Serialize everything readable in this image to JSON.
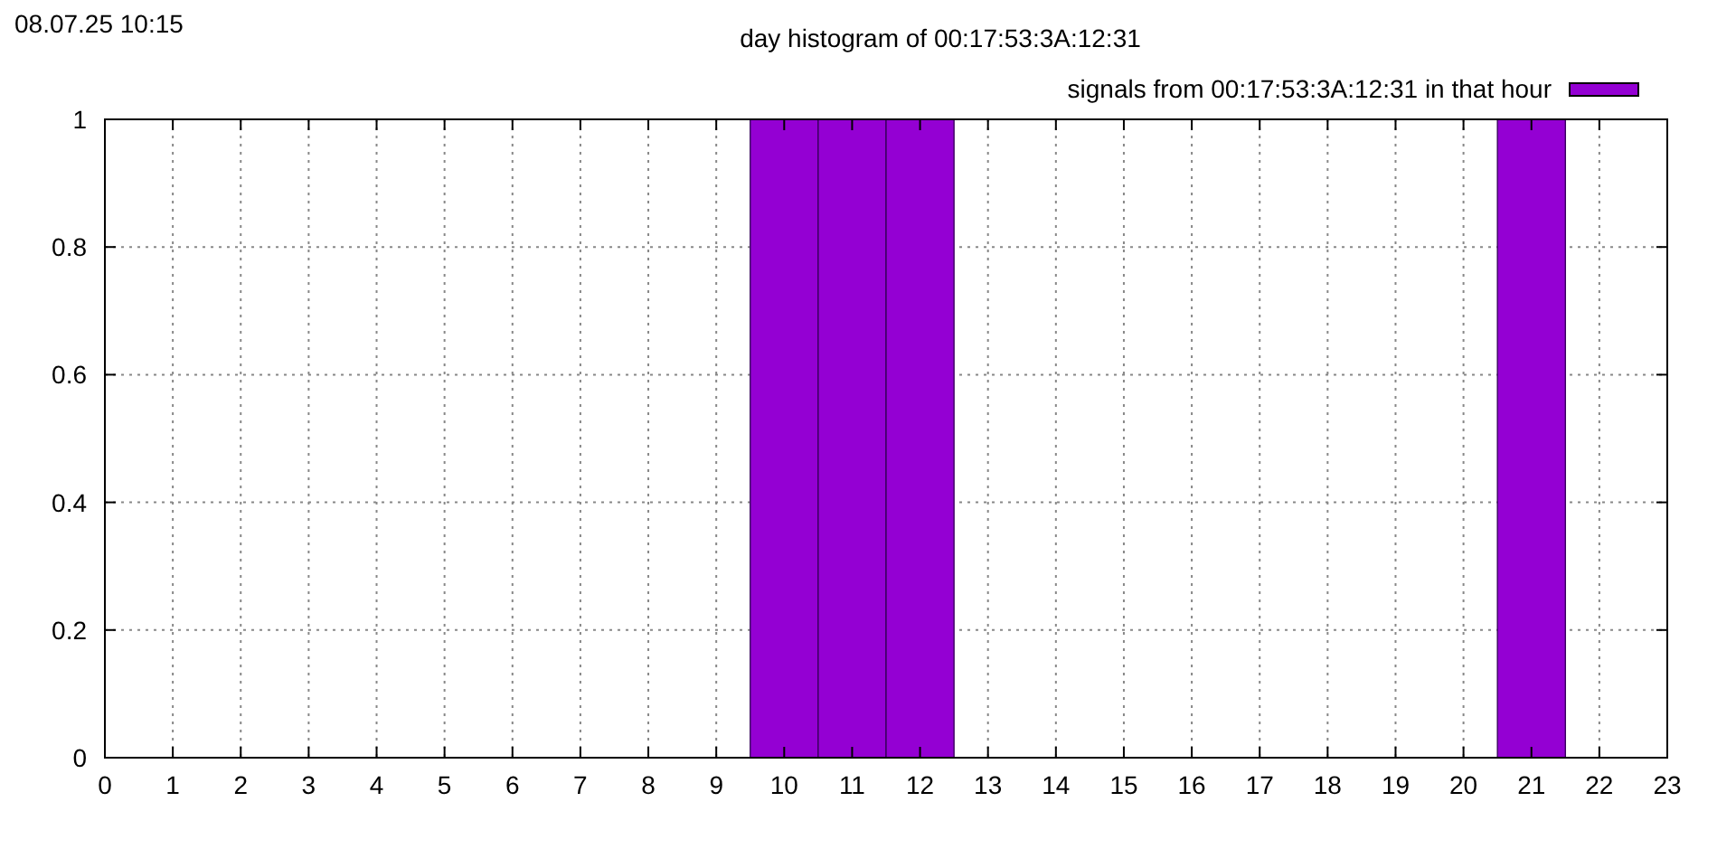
{
  "chart_data": {
    "type": "bar",
    "title": "day histogram of 00:17:53:3A:12:31",
    "annotations": [
      "08.07.25 10:15"
    ],
    "x": [
      10,
      11,
      12,
      21
    ],
    "series": [
      {
        "name": "signals from 00:17:53:3A:12:31 in that hour",
        "color": "#9400d3",
        "values": [
          1,
          1,
          1,
          1
        ]
      }
    ],
    "xlim": [
      0,
      23
    ],
    "xticks": [
      0,
      1,
      2,
      3,
      4,
      5,
      6,
      7,
      8,
      9,
      10,
      11,
      12,
      13,
      14,
      15,
      16,
      17,
      18,
      19,
      20,
      21,
      22,
      23
    ],
    "ylim": [
      0,
      1
    ],
    "yticks": [
      0,
      0.2,
      0.4,
      0.6,
      0.8,
      1
    ],
    "grid": true,
    "legend": "top right"
  }
}
